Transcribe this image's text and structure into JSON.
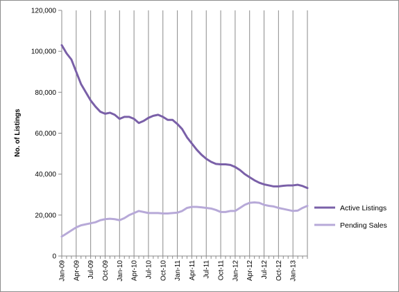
{
  "chart_data": {
    "type": "line",
    "title": "",
    "xlabel": "",
    "ylabel": "No. of Listings",
    "ylim": [
      0,
      120000
    ],
    "yticks": [
      0,
      20000,
      40000,
      60000,
      80000,
      100000,
      120000
    ],
    "ytick_labels": [
      "0",
      "20,000",
      "40,000",
      "60,000",
      "80,000",
      "100,000",
      "120,000"
    ],
    "x_range": [
      "Jan-09",
      "Apr-13"
    ],
    "xtick_labels": [
      "Jan-09",
      "Apr-09",
      "Jul-09",
      "Oct-09",
      "Jan-10",
      "Apr-10",
      "Jul-10",
      "Oct-10",
      "Jan-11",
      "Apr-11",
      "Jul-11",
      "Oct-11",
      "Jan-12",
      "Apr-12",
      "Jul-12",
      "Oct-12",
      "Jan-13"
    ],
    "grid": "vertical",
    "legend_position": "right",
    "series": [
      {
        "name": "Active Listings",
        "color": "#7a60a8",
        "values": [
          [
            "Jan-09",
            103000
          ],
          [
            "Feb-09",
            99000
          ],
          [
            "Mar-09",
            96000
          ],
          [
            "Apr-09",
            90000
          ],
          [
            "May-09",
            84000
          ],
          [
            "Jun-09",
            80000
          ],
          [
            "Jul-09",
            76000
          ],
          [
            "Aug-09",
            73000
          ],
          [
            "Sep-09",
            70500
          ],
          [
            "Oct-09",
            69500
          ],
          [
            "Nov-09",
            70000
          ],
          [
            "Dec-09",
            69000
          ],
          [
            "Jan-10",
            67000
          ],
          [
            "Feb-10",
            68000
          ],
          [
            "Mar-10",
            68000
          ],
          [
            "Apr-10",
            67000
          ],
          [
            "May-10",
            65000
          ],
          [
            "Jun-10",
            66000
          ],
          [
            "Jul-10",
            67500
          ],
          [
            "Aug-10",
            68500
          ],
          [
            "Sep-10",
            69000
          ],
          [
            "Oct-10",
            68000
          ],
          [
            "Nov-10",
            66500
          ],
          [
            "Dec-10",
            66500
          ],
          [
            "Jan-11",
            64500
          ],
          [
            "Feb-11",
            62000
          ],
          [
            "Mar-11",
            58000
          ],
          [
            "Apr-11",
            55000
          ],
          [
            "May-11",
            52000
          ],
          [
            "Jun-11",
            49500
          ],
          [
            "Jul-11",
            47500
          ],
          [
            "Aug-11",
            46000
          ],
          [
            "Sep-11",
            45000
          ],
          [
            "Oct-11",
            44800
          ],
          [
            "Nov-11",
            44800
          ],
          [
            "Dec-11",
            44500
          ],
          [
            "Jan-12",
            43500
          ],
          [
            "Feb-12",
            42000
          ],
          [
            "Mar-12",
            40000
          ],
          [
            "Apr-12",
            38500
          ],
          [
            "May-12",
            37000
          ],
          [
            "Jun-12",
            35800
          ],
          [
            "Jul-12",
            35000
          ],
          [
            "Aug-12",
            34500
          ],
          [
            "Sep-12",
            34000
          ],
          [
            "Oct-12",
            34000
          ],
          [
            "Nov-12",
            34300
          ],
          [
            "Dec-12",
            34500
          ],
          [
            "Jan-13",
            34500
          ],
          [
            "Feb-13",
            34800
          ],
          [
            "Mar-13",
            34200
          ],
          [
            "Apr-13",
            33200
          ]
        ]
      },
      {
        "name": "Pending Sales",
        "color": "#b7a9d8",
        "values": [
          [
            "Jan-09",
            9500
          ],
          [
            "Feb-09",
            11000
          ],
          [
            "Mar-09",
            12500
          ],
          [
            "Apr-09",
            14000
          ],
          [
            "May-09",
            15000
          ],
          [
            "Jun-09",
            15500
          ],
          [
            "Jul-09",
            16000
          ],
          [
            "Aug-09",
            16500
          ],
          [
            "Sep-09",
            17500
          ],
          [
            "Oct-09",
            18000
          ],
          [
            "Nov-09",
            18200
          ],
          [
            "Dec-09",
            18000
          ],
          [
            "Jan-10",
            17500
          ],
          [
            "Feb-10",
            18500
          ],
          [
            "Mar-10",
            20000
          ],
          [
            "Apr-10",
            21000
          ],
          [
            "May-10",
            22000
          ],
          [
            "Jun-10",
            21500
          ],
          [
            "Jul-10",
            21000
          ],
          [
            "Aug-10",
            21000
          ],
          [
            "Sep-10",
            21000
          ],
          [
            "Oct-10",
            20800
          ],
          [
            "Nov-10",
            20800
          ],
          [
            "Dec-10",
            21000
          ],
          [
            "Jan-11",
            21200
          ],
          [
            "Feb-11",
            22000
          ],
          [
            "Mar-11",
            23500
          ],
          [
            "Apr-11",
            24000
          ],
          [
            "May-11",
            24000
          ],
          [
            "Jun-11",
            23800
          ],
          [
            "Jul-11",
            23500
          ],
          [
            "Aug-11",
            23200
          ],
          [
            "Sep-11",
            22500
          ],
          [
            "Oct-11",
            21500
          ],
          [
            "Nov-11",
            21500
          ],
          [
            "Dec-11",
            22000
          ],
          [
            "Jan-12",
            22000
          ],
          [
            "Feb-12",
            23500
          ],
          [
            "Mar-12",
            25000
          ],
          [
            "Apr-12",
            26000
          ],
          [
            "May-12",
            26200
          ],
          [
            "Jun-12",
            26000
          ],
          [
            "Jul-12",
            25000
          ],
          [
            "Aug-12",
            24500
          ],
          [
            "Sep-12",
            24200
          ],
          [
            "Oct-12",
            23500
          ],
          [
            "Nov-12",
            23000
          ],
          [
            "Dec-12",
            22500
          ],
          [
            "Jan-13",
            22000
          ],
          [
            "Feb-13",
            22200
          ],
          [
            "Mar-13",
            23500
          ],
          [
            "Apr-13",
            24500
          ]
        ]
      }
    ]
  }
}
